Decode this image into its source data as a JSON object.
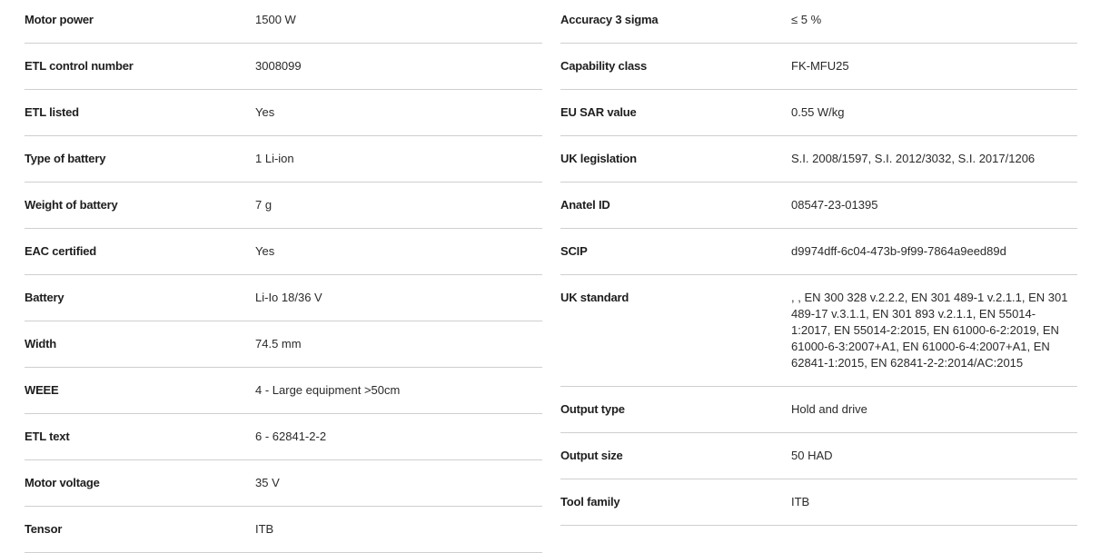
{
  "left": [
    {
      "label": "Motor power",
      "value": "1500 W"
    },
    {
      "label": "ETL control number",
      "value": "3008099"
    },
    {
      "label": "ETL listed",
      "value": "Yes"
    },
    {
      "label": "Type of battery",
      "value": "1 Li-ion"
    },
    {
      "label": "Weight of battery",
      "value": "7 g"
    },
    {
      "label": "EAC certified",
      "value": "Yes"
    },
    {
      "label": "Battery",
      "value": "Li-Io 18/36 V"
    },
    {
      "label": "Width",
      "value": "74.5 mm"
    },
    {
      "label": "WEEE",
      "value": "4 - Large equipment >50cm"
    },
    {
      "label": "ETL text",
      "value": "6 - 62841-2-2"
    },
    {
      "label": "Motor voltage",
      "value": "35 V"
    },
    {
      "label": "Tensor",
      "value": "ITB"
    }
  ],
  "right": [
    {
      "label": "Accuracy 3 sigma",
      "value": "≤ 5 %"
    },
    {
      "label": "Capability class",
      "value": "FK-MFU25"
    },
    {
      "label": "EU SAR value",
      "value": "0.55 W/kg"
    },
    {
      "label": "UK legislation",
      "value": "S.I. 2008/1597, S.I. 2012/3032, S.I. 2017/1206"
    },
    {
      "label": "Anatel ID",
      "value": "08547-23-01395"
    },
    {
      "label": "SCIP",
      "value": "d9974dff-6c04-473b-9f99-7864a9eed89d"
    },
    {
      "label": "UK standard",
      "value": ", , EN 300 328 v.2.2.2, EN 301 489-1 v.2.1.1, EN 301 489-17 v.3.1.1, EN 301 893 v.2.1.1, EN 55014-1:2017, EN 55014-2:2015, EN 61000-6-2:2019, EN 61000-6-3:2007+A1, EN 61000-6-4:2007+A1, EN 62841-1:2015, EN 62841-2-2:2014/AC:2015"
    },
    {
      "label": "Output type",
      "value": "Hold and drive"
    },
    {
      "label": "Output size",
      "value": "50 HAD"
    },
    {
      "label": "Tool family",
      "value": "ITB"
    }
  ]
}
